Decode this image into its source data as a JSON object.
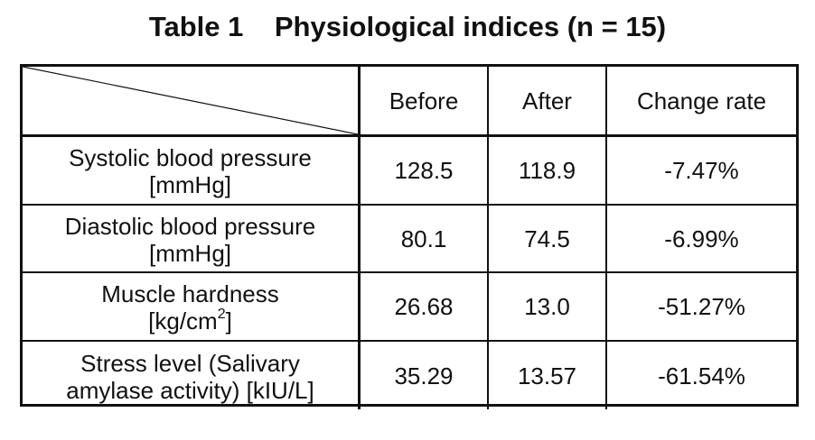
{
  "caption": "Table 1    Physiological indices (n = 15)",
  "columns": [
    "Before",
    "After",
    "Change rate"
  ],
  "rows": [
    {
      "label_line1": "Systolic blood pressure",
      "label_line2": "[mmHg]",
      "label_sup": "",
      "label_tail": "",
      "before": "128.5",
      "after": "118.9",
      "change": "-7.47%"
    },
    {
      "label_line1": "Diastolic blood pressure",
      "label_line2": "[mmHg]",
      "label_sup": "",
      "label_tail": "",
      "before": "80.1",
      "after": "74.5",
      "change": "-6.99%"
    },
    {
      "label_line1": "Muscle hardness",
      "label_line2": "[kg/cm",
      "label_sup": "2",
      "label_tail": "]",
      "before": "26.68",
      "after": "13.0",
      "change": "-51.27%"
    },
    {
      "label_line1": "Stress level (Salivary",
      "label_line2": "amylase activity) [kIU/L]",
      "label_sup": "",
      "label_tail": "",
      "before": "35.29",
      "after": "13.57",
      "change": "-61.54%"
    }
  ]
}
